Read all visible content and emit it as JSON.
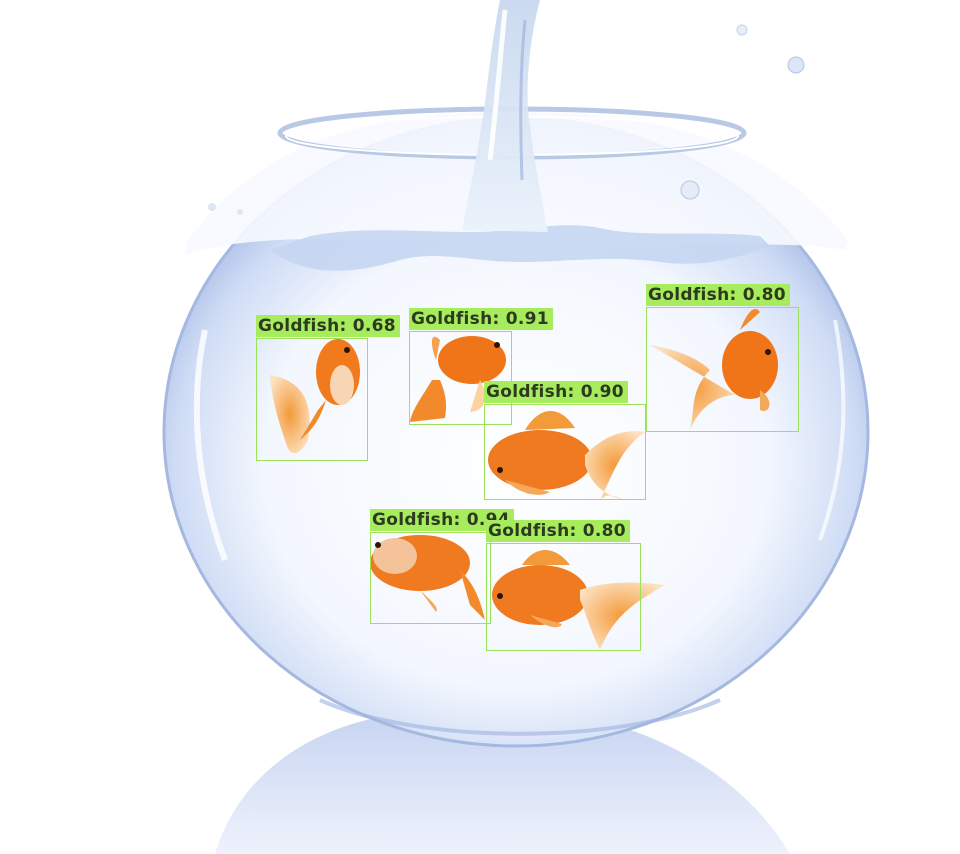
{
  "detections": [
    {
      "label": "Goldfish: 0.68",
      "class": "Goldfish",
      "score": 0.68
    },
    {
      "label": "Goldfish: 0.91",
      "class": "Goldfish",
      "score": 0.91
    },
    {
      "label": "Goldfish: 0.80",
      "class": "Goldfish",
      "score": 0.8
    },
    {
      "label": "Goldfish: 0.90",
      "class": "Goldfish",
      "score": 0.9
    },
    {
      "label": "Goldfish: 0.94",
      "class": "Goldfish",
      "score": 0.94
    },
    {
      "label": "Goldfish: 0.80",
      "class": "Goldfish",
      "score": 0.8
    }
  ],
  "colors": {
    "box_border": "#9be15a",
    "label_bg": "#a7ec5c",
    "label_text": "#2c3a1f",
    "fish_orange": "#f07818",
    "water": "#dde9fb"
  }
}
